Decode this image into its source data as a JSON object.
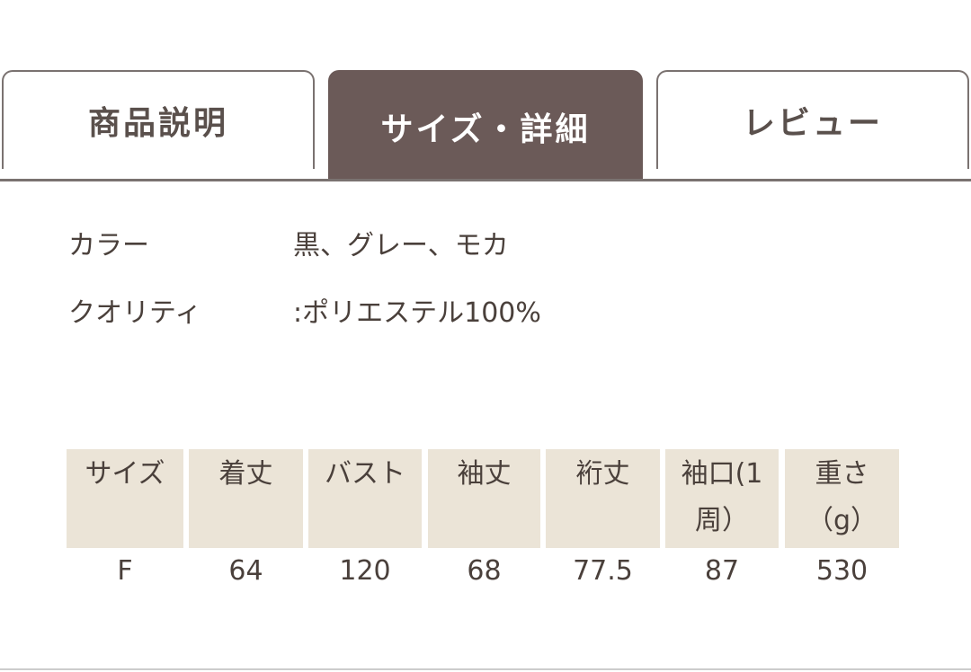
{
  "tabs": [
    {
      "label": "商品説明",
      "active": false
    },
    {
      "label": "サイズ・詳細",
      "active": true
    },
    {
      "label": "レビュー",
      "active": false
    }
  ],
  "specs": [
    {
      "label": "カラー",
      "value": "黒、グレー、モカ"
    },
    {
      "label": "クオリティ",
      "value": ":ポリエステル100%"
    }
  ],
  "size_table": {
    "headers": [
      "サイズ",
      "着丈",
      "バスト",
      "袖丈",
      "裄丈",
      "袖口(1周）",
      "重さ（g）"
    ],
    "rows": [
      [
        "F",
        "64",
        "120",
        "68",
        "77.5",
        "87",
        "530"
      ]
    ]
  },
  "colors": {
    "active_tab": "#6b5a58",
    "header_bg": "#ebe4d7"
  }
}
